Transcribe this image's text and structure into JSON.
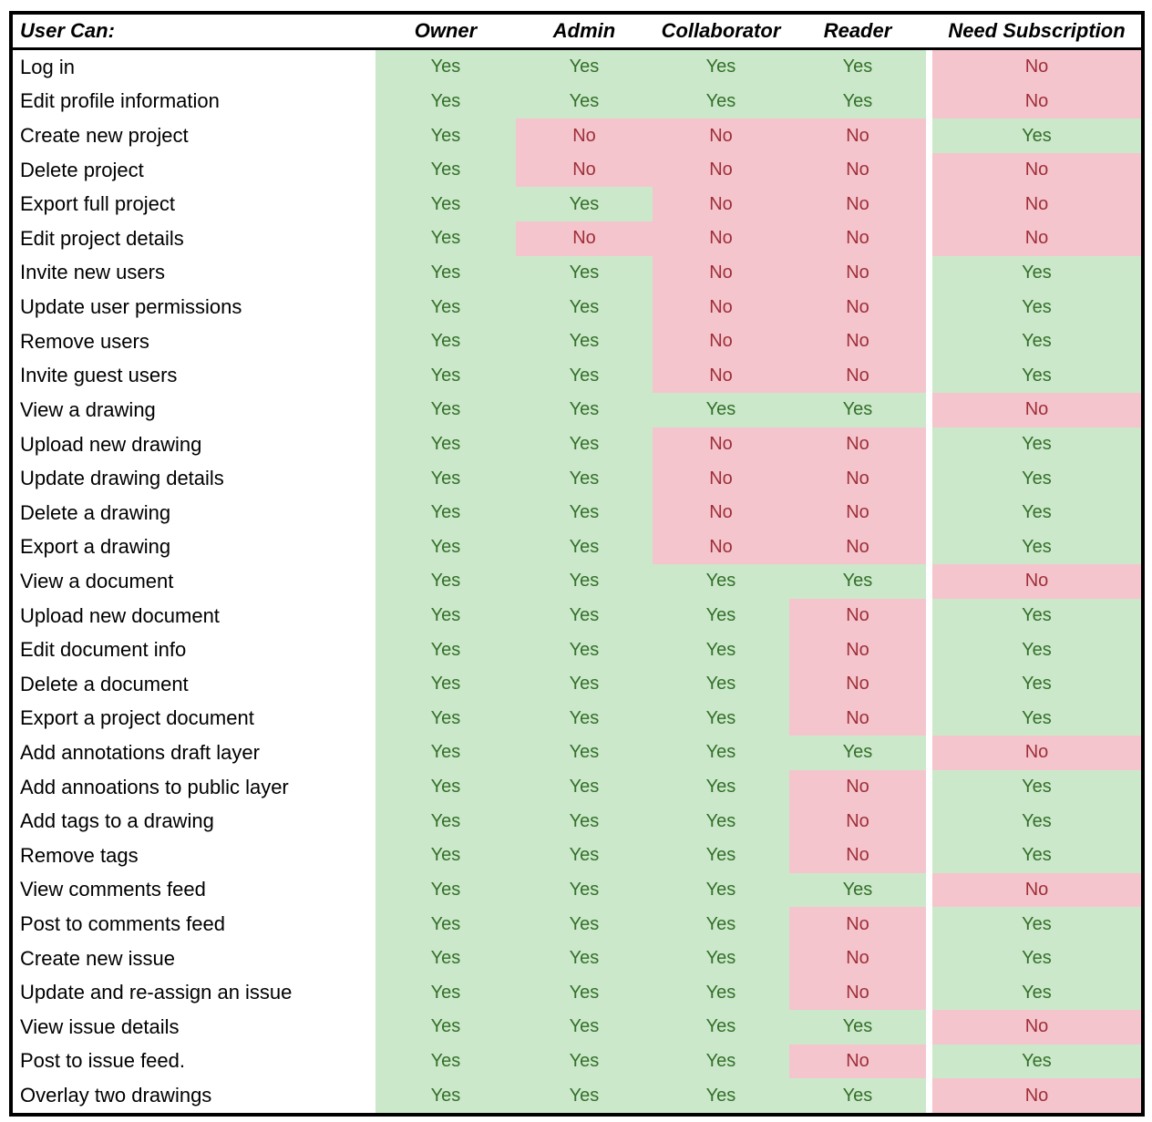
{
  "table": {
    "header": {
      "label": "User Can:",
      "columns": [
        "Owner",
        "Admin",
        "Collaborator",
        "Reader",
        "Need Subscription"
      ]
    },
    "values": {
      "yes": "Yes",
      "no": "No"
    },
    "rows": [
      {
        "label": "Log in",
        "values": [
          "Yes",
          "Yes",
          "Yes",
          "Yes",
          "No"
        ]
      },
      {
        "label": "Edit profile information",
        "values": [
          "Yes",
          "Yes",
          "Yes",
          "Yes",
          "No"
        ]
      },
      {
        "label": "Create new project",
        "values": [
          "Yes",
          "No",
          "No",
          "No",
          "Yes"
        ]
      },
      {
        "label": "Delete project",
        "values": [
          "Yes",
          "No",
          "No",
          "No",
          "No"
        ]
      },
      {
        "label": "Export full project",
        "values": [
          "Yes",
          "Yes",
          "No",
          "No",
          "No"
        ]
      },
      {
        "label": "Edit project details",
        "values": [
          "Yes",
          "No",
          "No",
          "No",
          "No"
        ]
      },
      {
        "label": "Invite new users",
        "values": [
          "Yes",
          "Yes",
          "No",
          "No",
          "Yes"
        ]
      },
      {
        "label": "Update user permissions",
        "values": [
          "Yes",
          "Yes",
          "No",
          "No",
          "Yes"
        ]
      },
      {
        "label": "Remove users",
        "values": [
          "Yes",
          "Yes",
          "No",
          "No",
          "Yes"
        ]
      },
      {
        "label": "Invite guest users",
        "values": [
          "Yes",
          "Yes",
          "No",
          "No",
          "Yes"
        ]
      },
      {
        "label": "View a drawing",
        "values": [
          "Yes",
          "Yes",
          "Yes",
          "Yes",
          "No"
        ]
      },
      {
        "label": "Upload new drawing",
        "values": [
          "Yes",
          "Yes",
          "No",
          "No",
          "Yes"
        ]
      },
      {
        "label": "Update drawing details",
        "values": [
          "Yes",
          "Yes",
          "No",
          "No",
          "Yes"
        ]
      },
      {
        "label": "Delete a drawing",
        "values": [
          "Yes",
          "Yes",
          "No",
          "No",
          "Yes"
        ]
      },
      {
        "label": "Export a drawing",
        "values": [
          "Yes",
          "Yes",
          "No",
          "No",
          "Yes"
        ]
      },
      {
        "label": "View a document",
        "values": [
          "Yes",
          "Yes",
          "Yes",
          "Yes",
          "No"
        ]
      },
      {
        "label": "Upload new document",
        "values": [
          "Yes",
          "Yes",
          "Yes",
          "No",
          "Yes"
        ]
      },
      {
        "label": "Edit document info",
        "values": [
          "Yes",
          "Yes",
          "Yes",
          "No",
          "Yes"
        ]
      },
      {
        "label": "Delete a document",
        "values": [
          "Yes",
          "Yes",
          "Yes",
          "No",
          "Yes"
        ]
      },
      {
        "label": "Export a project document",
        "values": [
          "Yes",
          "Yes",
          "Yes",
          "No",
          "Yes"
        ]
      },
      {
        "label": "Add annotations draft layer",
        "values": [
          "Yes",
          "Yes",
          "Yes",
          "Yes",
          "No"
        ]
      },
      {
        "label": "Add annoations to public layer",
        "values": [
          "Yes",
          "Yes",
          "Yes",
          "No",
          "Yes"
        ]
      },
      {
        "label": "Add tags to a drawing",
        "values": [
          "Yes",
          "Yes",
          "Yes",
          "No",
          "Yes"
        ]
      },
      {
        "label": "Remove tags",
        "values": [
          "Yes",
          "Yes",
          "Yes",
          "No",
          "Yes"
        ]
      },
      {
        "label": "View comments feed",
        "values": [
          "Yes",
          "Yes",
          "Yes",
          "Yes",
          "No"
        ]
      },
      {
        "label": "Post to comments feed",
        "values": [
          "Yes",
          "Yes",
          "Yes",
          "No",
          "Yes"
        ]
      },
      {
        "label": "Create new issue",
        "values": [
          "Yes",
          "Yes",
          "Yes",
          "No",
          "Yes"
        ]
      },
      {
        "label": "Update and re-assign an issue",
        "values": [
          "Yes",
          "Yes",
          "Yes",
          "No",
          "Yes"
        ]
      },
      {
        "label": "View issue details",
        "values": [
          "Yes",
          "Yes",
          "Yes",
          "Yes",
          "No"
        ]
      },
      {
        "label": "Post to issue feed.",
        "values": [
          "Yes",
          "Yes",
          "Yes",
          "No",
          "Yes"
        ]
      },
      {
        "label": "Overlay two drawings",
        "values": [
          "Yes",
          "Yes",
          "Yes",
          "Yes",
          "No"
        ]
      }
    ]
  },
  "theme": {
    "green_bg": "#cce8ca",
    "green_text": "#33702a",
    "pink_bg": "#f5c5cd",
    "pink_text": "#9e2f38",
    "border_color": "#000000",
    "page_bg": "#ffffff"
  }
}
